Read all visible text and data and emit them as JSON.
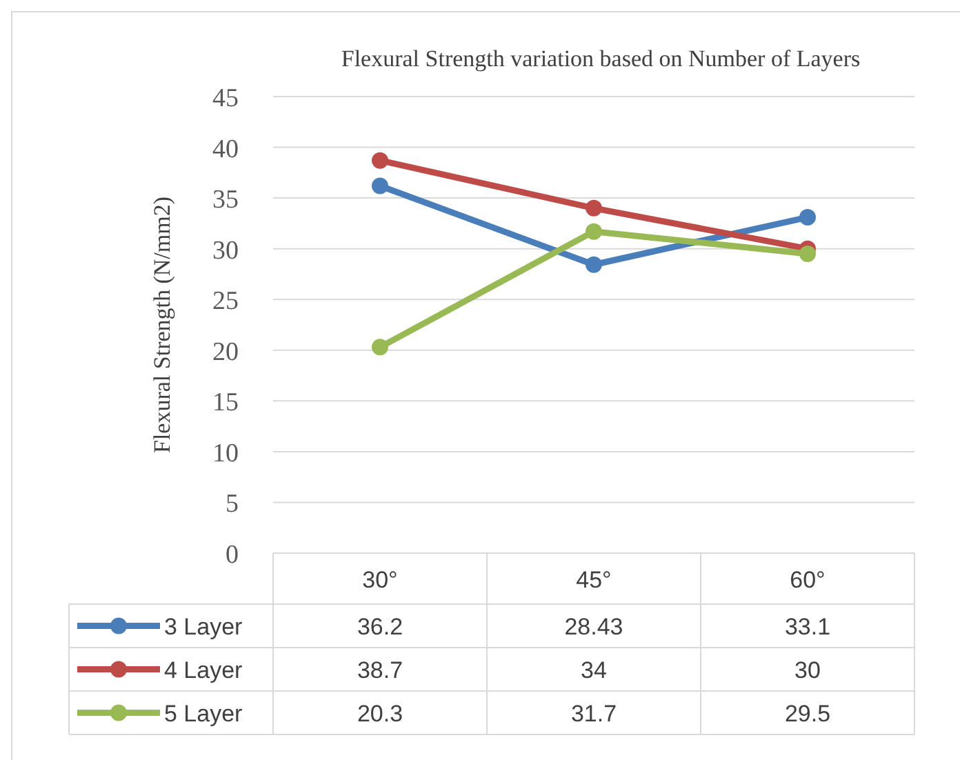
{
  "chart_data": {
    "type": "line",
    "title": "Flexural Strength variation based on Number of Layers",
    "ylabel": "Flexural Strength (N/mm2)",
    "categories": [
      "30°",
      "45°",
      "60°"
    ],
    "series": [
      {
        "name": "3 Layer",
        "color": "#4a7ebb",
        "values": [
          36.2,
          28.43,
          33.1
        ]
      },
      {
        "name": "4 Layer",
        "color": "#be4b48",
        "values": [
          38.7,
          34,
          30
        ]
      },
      {
        "name": "5 Layer",
        "color": "#98b954",
        "values": [
          20.3,
          31.7,
          29.5
        ]
      }
    ],
    "ylim": [
      0,
      45
    ],
    "yticks": [
      0,
      5,
      10,
      15,
      20,
      25,
      30,
      35,
      40,
      45
    ],
    "grid": "y",
    "legend": "bottom",
    "data_labels": true,
    "marker": "circle",
    "line_style": "solid"
  }
}
